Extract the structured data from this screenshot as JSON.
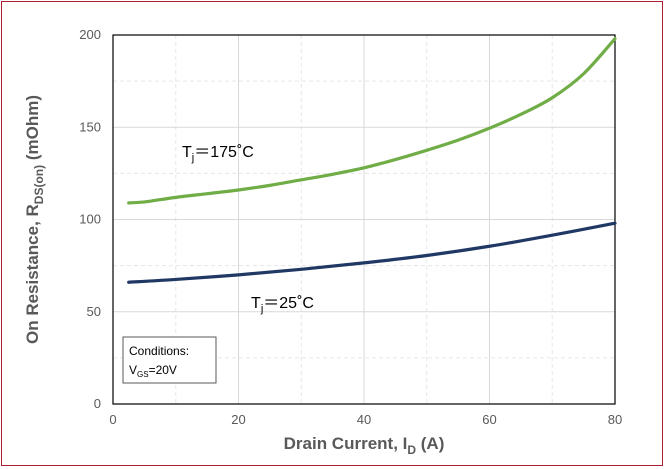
{
  "chart_data": {
    "type": "line",
    "title": "",
    "xlabel": {
      "main": "Drain Current, I",
      "sub": "D",
      "unit": " (A)"
    },
    "ylabel": {
      "main": "On Resistance, R",
      "sub": "DS(on)",
      "unit": " (mOhm)"
    },
    "xlim": [
      0,
      80
    ],
    "ylim": [
      0,
      200
    ],
    "xticks": [
      0,
      20,
      40,
      60,
      80
    ],
    "yticks": [
      0,
      50,
      100,
      150,
      200
    ],
    "grid": true,
    "series": [
      {
        "label_main": "T",
        "label_sub": "j",
        "label_rest": "＝175˚C",
        "color": "#70ad47",
        "x": [
          2.5,
          5,
          10,
          15,
          20,
          25,
          30,
          35,
          40,
          45,
          50,
          55,
          60,
          65,
          70,
          75,
          80
        ],
        "y": [
          109,
          109.5,
          112,
          114,
          116,
          118.5,
          121.5,
          124.5,
          128,
          132.5,
          137.5,
          143,
          149.5,
          157,
          166,
          179,
          198
        ]
      },
      {
        "label_main": "T",
        "label_sub": "j",
        "label_rest": "＝25˚C",
        "color": "#203864",
        "x": [
          2.5,
          10,
          20,
          30,
          40,
          50,
          60,
          70,
          80
        ],
        "y": [
          66,
          67.5,
          70,
          73,
          76.5,
          80.5,
          85.5,
          91.5,
          98
        ]
      }
    ],
    "conditions": {
      "title": "Conditions:",
      "param_main": "V",
      "param_sub": "GS",
      "param_rest": "=20V"
    }
  }
}
